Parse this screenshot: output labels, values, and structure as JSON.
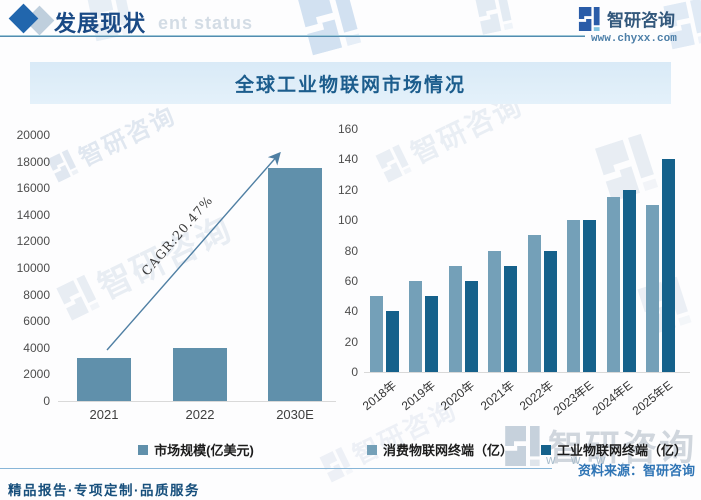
{
  "header": {
    "title": "发展现状",
    "watermark": "ent status",
    "logo_text": "智研咨询",
    "logo_url": "www.chyxx.com"
  },
  "banner": {
    "title": "全球工业物联网市场情况"
  },
  "chart_data": [
    {
      "type": "bar",
      "title": "市场规模",
      "categories": [
        "2021",
        "2022",
        "2030E"
      ],
      "values": [
        3200,
        4000,
        17500
      ],
      "ylim": [
        0,
        20000
      ],
      "yticks": [
        "20000",
        "18000",
        "16000",
        "14000",
        "12000",
        "10000",
        "8000",
        "6000",
        "4000",
        "2000",
        "0"
      ],
      "legend": "市场规模(亿美元)",
      "bar_color": "#6090ab",
      "annotation": "CAGR:20.47%",
      "grid": false,
      "legend_position": "bottom"
    },
    {
      "type": "bar",
      "title": "物联网终端数量",
      "categories": [
        "2018年",
        "2019年",
        "2020年",
        "2021年",
        "2022年",
        "2023年E",
        "2024年E",
        "2025年E"
      ],
      "series": [
        {
          "name": "消费物联网终端（亿）",
          "color": "#74a0b8",
          "values": [
            50,
            60,
            70,
            80,
            90,
            100,
            115,
            110
          ]
        },
        {
          "name": "工业物联网终端（亿）",
          "color": "#15618b",
          "values": [
            40,
            50,
            60,
            70,
            80,
            100,
            120,
            140
          ]
        }
      ],
      "ylim": [
        0,
        160
      ],
      "yticks": [
        "160",
        "140",
        "120",
        "100",
        "80",
        "60",
        "40",
        "20",
        "0"
      ],
      "grid": false,
      "legend_position": "bottom"
    }
  ],
  "footer": {
    "source": "资料来源：智研咨询",
    "slogan": "精品报告·专项定制·品质服务"
  },
  "watermarks": {
    "brand": "智研咨询",
    "www": "w w w ."
  },
  "colors": {
    "accent_blue": "#2166ad",
    "header_title": "#1a4a85",
    "banner_bg": "#dcebf7",
    "banner_title": "#1c5d8d",
    "bar_left": "#6090ab",
    "bar_light": "#74a0b8",
    "bar_dark": "#15618b",
    "source_text": "#2e74b5",
    "slogan_text": "#174f7c"
  }
}
